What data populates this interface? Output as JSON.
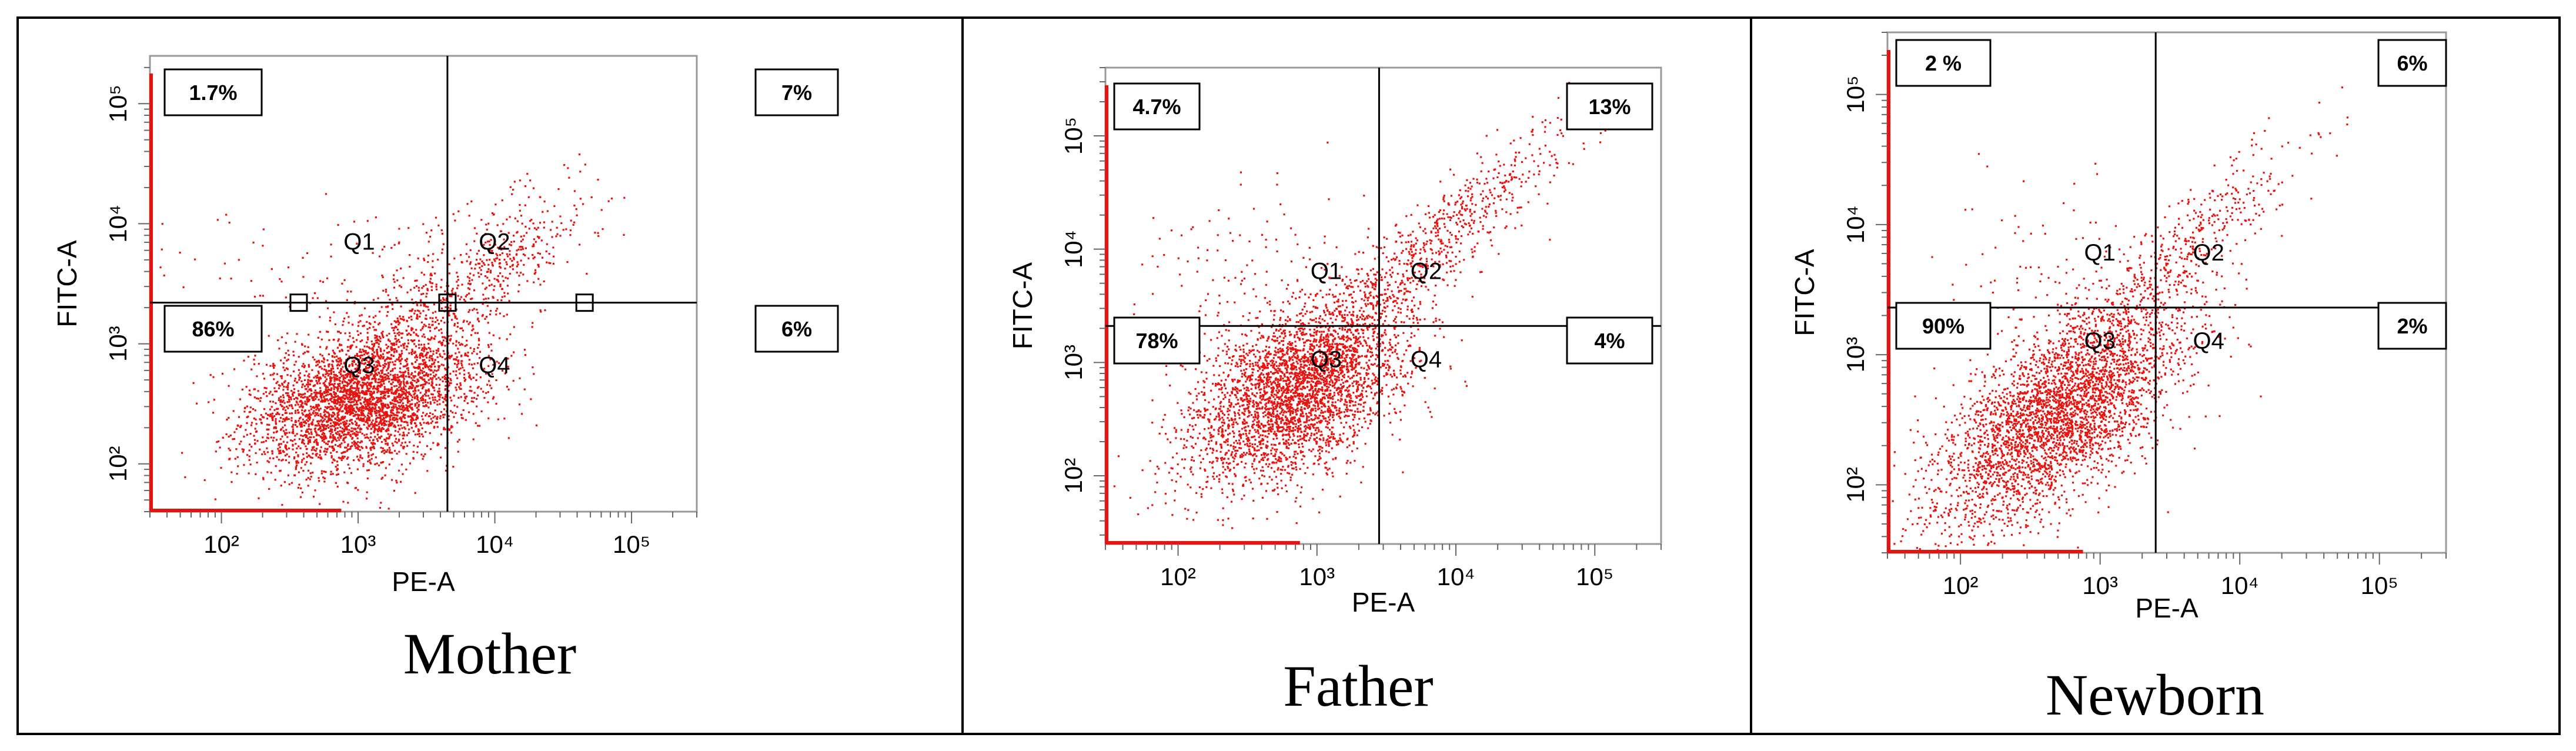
{
  "figure": {
    "panel_captions": [
      "Mother",
      "Father",
      "Newborn"
    ]
  },
  "colors": {
    "dots": "#e8130f",
    "border": "#000000",
    "axis": "#999999",
    "background": "#ffffff"
  },
  "chart_data": [
    {
      "type": "scatter",
      "title": "Mother",
      "xlabel": "PE-A",
      "ylabel": "FITC-A",
      "x_scale": "log",
      "y_scale": "log",
      "xlim": [
        30,
        300000
      ],
      "ylim": [
        40,
        250000
      ],
      "x_ticks": [
        {
          "value": 100,
          "label": "10²"
        },
        {
          "value": 1000,
          "label": "10³"
        },
        {
          "value": 10000,
          "label": "10⁴"
        },
        {
          "value": 100000,
          "label": "10⁵"
        }
      ],
      "y_ticks": [
        {
          "value": 100,
          "label": "10²"
        },
        {
          "value": 1000,
          "label": "10³"
        },
        {
          "value": 10000,
          "label": "10⁴"
        },
        {
          "value": 100000,
          "label": "10⁵"
        }
      ],
      "quadrant_gate": {
        "x": 4500,
        "y": 2200
      },
      "quadrants": [
        {
          "name": "Q1",
          "percent": "1.7%"
        },
        {
          "name": "Q2",
          "percent": "7%"
        },
        {
          "name": "Q3",
          "percent": "86%"
        },
        {
          "name": "Q4",
          "percent": "6%"
        }
      ],
      "clusters": [
        {
          "log_x_mean": 3.05,
          "log_x_sd": 0.42,
          "log_y_mean": 2.55,
          "log_y_sd": 0.3,
          "correlation": 0.35,
          "count": 3600
        },
        {
          "log_x_mean": 3.9,
          "log_x_sd": 0.42,
          "log_y_mean": 3.6,
          "log_y_sd": 0.35,
          "correlation": 0.75,
          "count": 520
        },
        {
          "log_x_mean": 2.95,
          "log_x_sd": 0.55,
          "log_y_mean": 3.55,
          "log_y_sd": 0.3,
          "correlation": 0.0,
          "count": 110
        }
      ]
    },
    {
      "type": "scatter",
      "title": "Father",
      "xlabel": "PE-A",
      "ylabel": "FITC-A",
      "x_scale": "log",
      "y_scale": "log",
      "xlim": [
        30,
        300000
      ],
      "ylim": [
        25,
        400000
      ],
      "x_ticks": [
        {
          "value": 100,
          "label": "10²"
        },
        {
          "value": 1000,
          "label": "10³"
        },
        {
          "value": 10000,
          "label": "10⁴"
        },
        {
          "value": 100000,
          "label": "10⁵"
        }
      ],
      "y_ticks": [
        {
          "value": 100,
          "label": "10²"
        },
        {
          "value": 1000,
          "label": "10³"
        },
        {
          "value": 10000,
          "label": "10⁴"
        },
        {
          "value": 100000,
          "label": "10⁵"
        }
      ],
      "quadrant_gate": {
        "x": 2800,
        "y": 2100
      },
      "quadrants": [
        {
          "name": "Q1",
          "percent": "4.7%"
        },
        {
          "name": "Q2",
          "percent": "13%"
        },
        {
          "name": "Q3",
          "percent": "78%"
        },
        {
          "name": "Q4",
          "percent": "4%"
        }
      ],
      "clusters": [
        {
          "log_x_mean": 2.85,
          "log_x_sd": 0.38,
          "log_y_mean": 2.75,
          "log_y_sd": 0.4,
          "correlation": 0.45,
          "count": 3400
        },
        {
          "log_x_mean": 3.85,
          "log_x_sd": 0.5,
          "log_y_mean": 4.05,
          "log_y_sd": 0.55,
          "correlation": 0.92,
          "count": 700
        },
        {
          "log_x_mean": 2.6,
          "log_x_sd": 0.5,
          "log_y_mean": 3.7,
          "log_y_sd": 0.4,
          "correlation": 0.0,
          "count": 150
        }
      ]
    },
    {
      "type": "scatter",
      "title": "Newborn",
      "xlabel": "PE-A",
      "ylabel": "FITC-A",
      "x_scale": "log",
      "y_scale": "log",
      "xlim": [
        30,
        300000
      ],
      "ylim": [
        30,
        300000
      ],
      "x_ticks": [
        {
          "value": 100,
          "label": "10²"
        },
        {
          "value": 1000,
          "label": "10³"
        },
        {
          "value": 10000,
          "label": "10⁴"
        },
        {
          "value": 100000,
          "label": "10⁵"
        }
      ],
      "y_ticks": [
        {
          "value": 100,
          "label": "10²"
        },
        {
          "value": 1000,
          "label": "10³"
        },
        {
          "value": 10000,
          "label": "10⁴"
        },
        {
          "value": 100000,
          "label": "10⁵"
        }
      ],
      "quadrant_gate": {
        "x": 2500,
        "y": 2300
      },
      "quadrants": [
        {
          "name": "Q1",
          "percent": "2 %"
        },
        {
          "name": "Q2",
          "percent": "6%"
        },
        {
          "name": "Q3",
          "percent": "90%"
        },
        {
          "name": "Q4",
          "percent": "2%"
        }
      ],
      "clusters": [
        {
          "log_x_mean": 2.7,
          "log_x_sd": 0.45,
          "log_y_mean": 2.55,
          "log_y_sd": 0.45,
          "correlation": 0.65,
          "count": 3600
        },
        {
          "log_x_mean": 3.65,
          "log_x_sd": 0.38,
          "log_y_mean": 3.85,
          "log_y_sd": 0.4,
          "correlation": 0.85,
          "count": 400
        },
        {
          "log_x_mean": 2.5,
          "log_x_sd": 0.4,
          "log_y_mean": 3.7,
          "log_y_sd": 0.35,
          "correlation": 0.0,
          "count": 70
        }
      ]
    }
  ]
}
